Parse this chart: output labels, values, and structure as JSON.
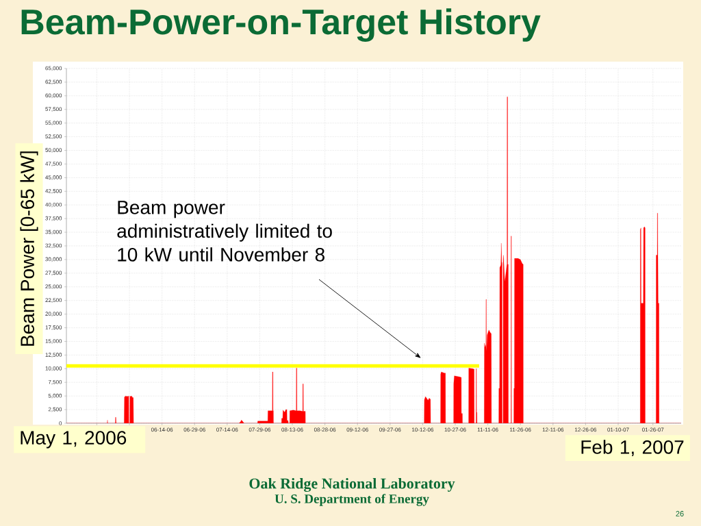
{
  "chart_data": {
    "type": "area",
    "title": "Beam-Power-on-Target History",
    "ylabel": "Beam Power [0-65 kW]",
    "xlim": [
      "2006-05-01",
      "2007-02-08"
    ],
    "ylim": [
      0,
      65000
    ],
    "xticks": [
      {
        "value": "2006-05-15",
        "label": null
      },
      {
        "value": "2006-05-30",
        "label": null
      },
      {
        "value": "2006-06-14",
        "label": "06-14-06"
      },
      {
        "value": "2006-06-29",
        "label": "06-29-06"
      },
      {
        "value": "2006-07-14",
        "label": "07-14-06"
      },
      {
        "value": "2006-07-29",
        "label": "07-29-06"
      },
      {
        "value": "2006-08-13",
        "label": "08-13-06"
      },
      {
        "value": "2006-08-28",
        "label": "08-28-06"
      },
      {
        "value": "2006-09-12",
        "label": "09-12-06"
      },
      {
        "value": "2006-09-27",
        "label": "09-27-06"
      },
      {
        "value": "2006-10-12",
        "label": "10-12-06"
      },
      {
        "value": "2006-10-27",
        "label": "10-27-06"
      },
      {
        "value": "2006-11-11",
        "label": "11-11-06"
      },
      {
        "value": "2006-11-26",
        "label": "11-26-06"
      },
      {
        "value": "2006-12-11",
        "label": "12-11-06"
      },
      {
        "value": "2006-12-26",
        "label": "12-26-06"
      },
      {
        "value": "2007-01-10",
        "label": "01-10-07"
      },
      {
        "value": "2007-01-26",
        "label": "01-26-07"
      }
    ],
    "yticks": [
      0,
      {
        "value": 2500,
        "label": "2,500"
      },
      {
        "value": 5000,
        "label": "5,000"
      },
      {
        "value": 7500,
        "label": "7,500"
      },
      {
        "value": 10000,
        "label": "10,000"
      },
      {
        "value": 12500,
        "label": "12,500"
      },
      {
        "value": 15000,
        "label": "15,000"
      },
      {
        "value": 17500,
        "label": "17,500"
      },
      {
        "value": 20000,
        "label": "20,000"
      },
      {
        "value": 22500,
        "label": "22,500"
      },
      {
        "value": 25000,
        "label": "25,000"
      },
      {
        "value": 27500,
        "label": "27,500"
      },
      {
        "value": 30000,
        "label": "30,000"
      },
      {
        "value": 32500,
        "label": "32,500"
      },
      {
        "value": 35000,
        "label": "35,000"
      },
      {
        "value": 37500,
        "label": "37,500"
      },
      {
        "value": 40000,
        "label": "40,000"
      },
      {
        "value": 42500,
        "label": "42,500"
      },
      {
        "value": 45000,
        "label": "45,000"
      },
      {
        "value": 47500,
        "label": "47,500"
      },
      {
        "value": 50000,
        "label": "50,000"
      },
      {
        "value": 52500,
        "label": "52,500"
      },
      {
        "value": 55000,
        "label": "55,000"
      },
      {
        "value": 57500,
        "label": "57,500"
      },
      {
        "value": 60000,
        "label": "60,000"
      },
      {
        "value": 62500,
        "label": "62,500"
      },
      {
        "value": 65000,
        "label": "65,000"
      }
    ],
    "grid": true,
    "series": [
      {
        "color": "#ff0000",
        "x": [
          "2006-05-01T00:00",
          "2006-05-19T19:00",
          "2006-05-19T22:00",
          "2006-05-20T00:00",
          "2006-05-23T12:00",
          "2006-05-23T14:00",
          "2006-05-23T19:00",
          "2006-05-23T22:00",
          "2006-05-27T14:00",
          "2006-05-27T17:00",
          "2006-05-28T07:00",
          "2006-05-29T00:00",
          "2006-05-29T14:00",
          "2006-05-29T17:00",
          "2006-05-29T18:00",
          "2006-05-30T04:00",
          "2006-05-30T05:00",
          "2006-05-30T07:00",
          "2006-05-31T00:00",
          "2006-05-31T12:00",
          "2006-05-31T19:00",
          "2006-05-31T22:00",
          "2006-07-19T12:00",
          "2006-07-20T05:00",
          "2006-07-20T14:00",
          "2006-07-21T05:00",
          "2006-07-21T19:00",
          "2006-07-28T00:00",
          "2006-07-28T02:00",
          "2006-08-01T17:00",
          "2006-08-01T19:00",
          "2006-08-03T19:00",
          "2006-08-03T20:00",
          "2006-08-04T02:00",
          "2006-08-04T03:00",
          "2006-08-04T07:00",
          "2006-08-04T08:00",
          "2006-08-08T01:00",
          "2006-08-08T02:00",
          "2006-08-08T14:00",
          "2006-08-08T17:00",
          "2006-08-09T12:00",
          "2006-08-10T00:00",
          "2006-08-10T12:00",
          "2006-08-10T14:00",
          "2006-08-11T02:00",
          "2006-08-11T04:00",
          "2006-08-11T19:00",
          "2006-08-11T20:00",
          "2006-08-13T12:00",
          "2006-08-14T19:00",
          "2006-08-14T20:00",
          "2006-08-15T02:00",
          "2006-08-15T03:00",
          "2006-08-16T12:00",
          "2006-08-17T19:00",
          "2006-08-17T20:00",
          "2006-08-18T02:00",
          "2006-08-18T03:00",
          "2006-08-19T00:00",
          "2006-08-19T01:00",
          "2006-10-12T17:00",
          "2006-10-12T19:00",
          "2006-10-13T07:00",
          "2006-10-14T00:00",
          "2006-10-14T12:00",
          "2006-10-15T00:00",
          "2006-10-15T14:00",
          "2006-10-15T16:00",
          "2006-10-20T06:00",
          "2006-10-20T07:00",
          "2006-10-20T14:00",
          "2006-10-22T00:00",
          "2006-10-22T12:00",
          "2006-10-22T13:00",
          "2006-10-26T06:00",
          "2006-10-26T07:00",
          "2006-10-26T14:00",
          "2006-10-29T00:00",
          "2006-10-29T19:00",
          "2006-10-29T20:00",
          "2006-10-30T07:00",
          "2006-10-30T08:00",
          "2006-11-02T04:00",
          "2006-11-02T05:00",
          "2006-11-04T00:00",
          "2006-11-04T17:00",
          "2006-11-04T18:00",
          "2006-11-05T14:00",
          "2006-11-05T15:00",
          "2006-11-05T19:00",
          "2006-11-05T20:00",
          "2006-11-06T00:00",
          "2006-11-06T01:00",
          "2006-11-09T08:00",
          "2006-11-09T10:00",
          "2006-11-09T17:00",
          "2006-11-10T03:00",
          "2006-11-10T04:00",
          "2006-11-10T07:00",
          "2006-11-10T08:00",
          "2006-11-10T10:00",
          "2006-11-10T17:00",
          "2006-11-11T12:00",
          "2006-11-12T00:00",
          "2006-11-12T14:00",
          "2006-11-12T16:00",
          "2006-11-16T01:00",
          "2006-11-16T02:00",
          "2006-11-16T10:00",
          "2006-11-16T12:00",
          "2006-11-17T00:00",
          "2006-11-17T05:00",
          "2006-11-17T10:00",
          "2006-11-17T14:00",
          "2006-11-17T15:00",
          "2006-11-18T01:00",
          "2006-11-18T02:00",
          "2006-11-18T05:00",
          "2006-11-18T19:00",
          "2006-11-19T10:00",
          "2006-11-19T19:00",
          "2006-11-19T20:00",
          "2006-11-19T21:00",
          "2006-11-20T03:00",
          "2006-11-20T04:00",
          "2006-11-20T10:00",
          "2006-11-20T11:00",
          "2006-11-21T16:00",
          "2006-11-21T17:00",
          "2006-11-21T21:00",
          "2006-11-21T22:00",
          "2006-11-22T23:00",
          "2006-11-23T00:00",
          "2006-11-23T06:00",
          "2006-11-23T07:00",
          "2006-11-24T22:00",
          "2006-11-26T00:00",
          "2006-11-26T19:00",
          "2006-11-27T07:00",
          "2006-11-27T08:00",
          "2007-01-20T04:00",
          "2007-01-20T05:00",
          "2007-01-20T12:00",
          "2007-01-20T14:00",
          "2007-01-21T14:00",
          "2007-01-21T17:00",
          "2007-01-22T02:00",
          "2007-01-22T10:00",
          "2007-01-22T11:00",
          "2007-01-27T11:00",
          "2007-01-27T12:00",
          "2007-01-28T00:00",
          "2007-01-28T01:00",
          "2007-01-28T05:00",
          "2007-01-28T06:00",
          "2007-01-28T10:00",
          "2007-01-28T19:00",
          "2007-01-28T20:00",
          "2007-02-08T00:00"
        ],
        "values": [
          0,
          0,
          600,
          0,
          0,
          1100,
          1100,
          0,
          0,
          4800,
          5000,
          4900,
          5000,
          4900,
          0,
          0,
          5000,
          4900,
          5000,
          4700,
          4700,
          0,
          0,
          300,
          600,
          300,
          0,
          0,
          400,
          400,
          2300,
          2300,
          9400,
          9400,
          2300,
          2300,
          0,
          0,
          900,
          900,
          2400,
          2000,
          2500,
          2500,
          500,
          500,
          0,
          0,
          2300,
          2400,
          2300,
          10100,
          10100,
          2300,
          2300,
          2200,
          7200,
          7200,
          2200,
          2200,
          0,
          0,
          4300,
          4900,
          4500,
          4200,
          4600,
          4400,
          0,
          0,
          9000,
          9400,
          9200,
          9200,
          0,
          0,
          7200,
          8700,
          8500,
          8400,
          1800,
          1800,
          0,
          0,
          10100,
          10000,
          9900,
          0,
          0,
          10000,
          10000,
          2000,
          2000,
          0,
          0,
          14700,
          13900,
          14500,
          22700,
          22700,
          14000,
          13200,
          16200,
          17100,
          16700,
          16400,
          0,
          0,
          6400,
          6400,
          28500,
          29000,
          33000,
          29000,
          29500,
          0,
          0,
          30200,
          30800,
          25900,
          27800,
          29100,
          29100,
          59800,
          59800,
          29100,
          29100,
          0,
          0,
          34300,
          34300,
          0,
          0,
          6400,
          6400,
          30200,
          30200,
          30000,
          29300,
          29100,
          0,
          0,
          35500,
          35800,
          22000,
          22000,
          35800,
          36000,
          35800,
          0,
          0,
          30800,
          30800,
          38500,
          38500,
          33400,
          22000,
          22000,
          0,
          0
        ]
      },
      {
        "type": "line",
        "color": "#ffff00",
        "x": [
          "2006-05-01",
          "2006-11-07"
        ],
        "values": [
          10500,
          10500
        ]
      }
    ],
    "annotations": [
      "Beam power administratively limited to 10 kW until November 8",
      "May 1, 2006",
      "Feb 1, 2007",
      "Oak Ridge National Laboratory",
      "U. S. Department of Energy",
      "26"
    ]
  }
}
